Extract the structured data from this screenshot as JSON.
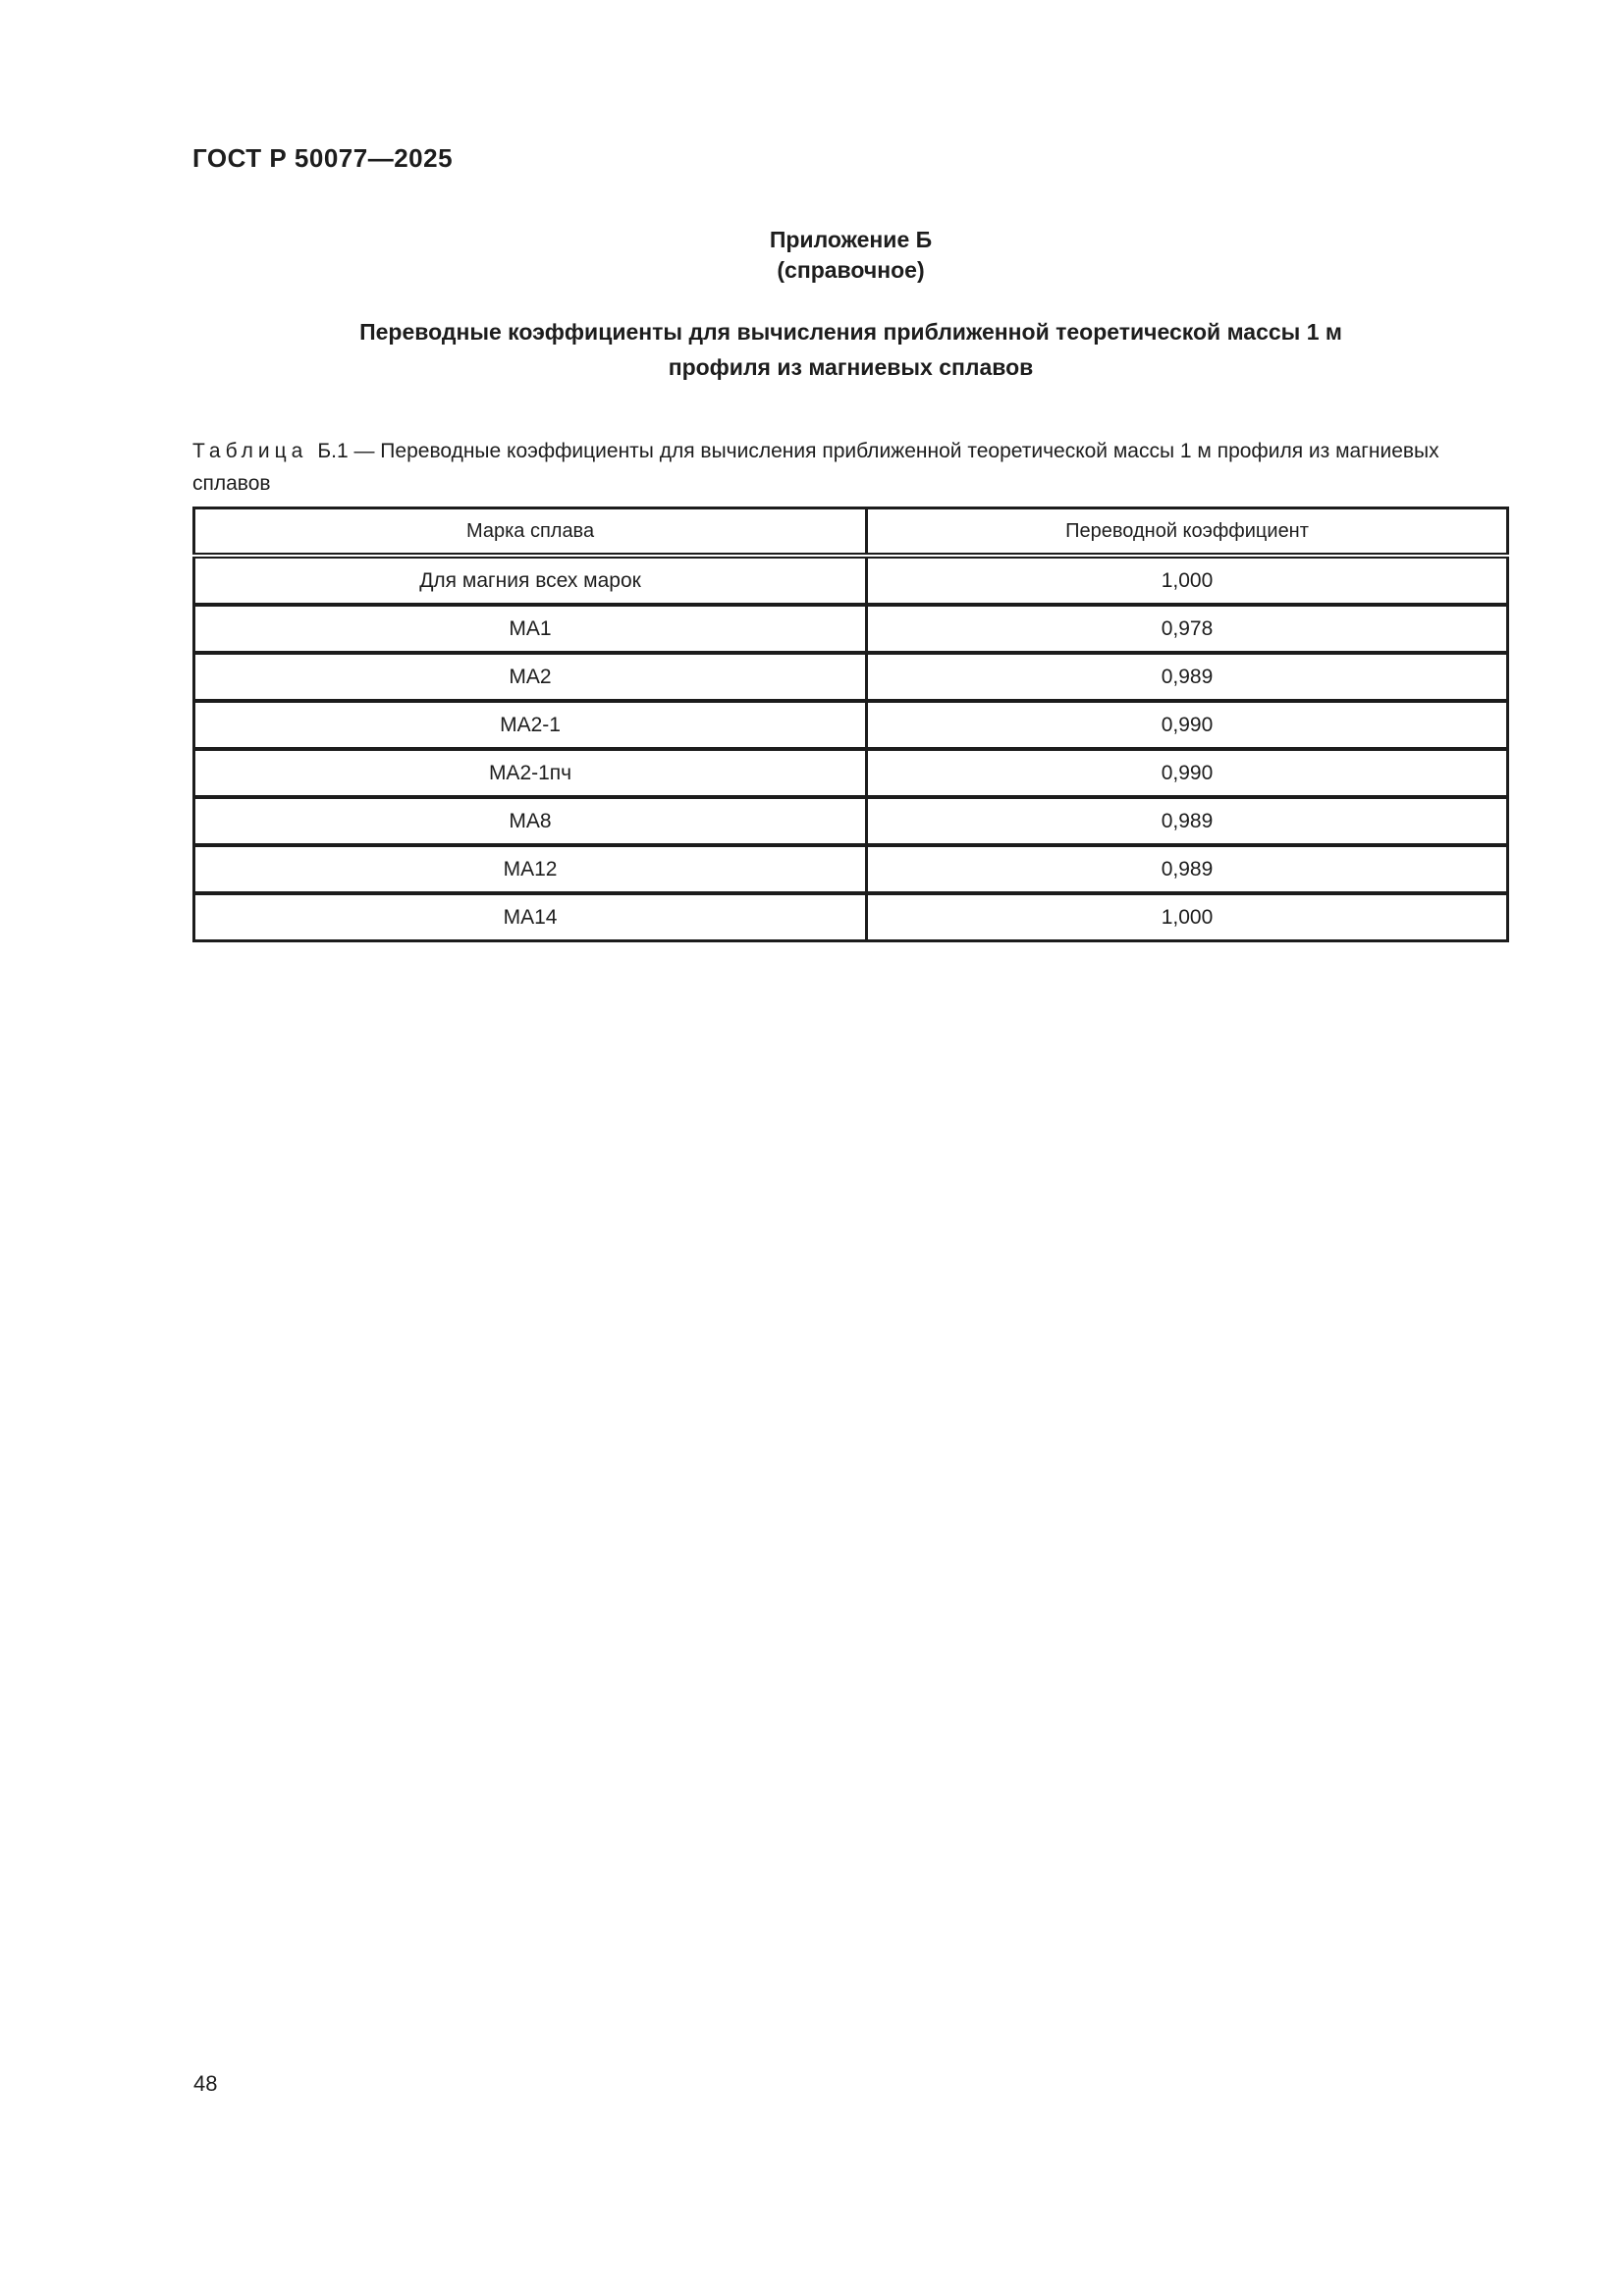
{
  "document": {
    "code": "ГОСТ Р 50077—2025",
    "page_number": "48"
  },
  "appendix": {
    "label": "Приложение Б",
    "kind": "(справочное)",
    "title_lines": [
      "Переводные коэффициенты для вычисления приближенной теоретической массы 1 м",
      "профиля из магниевых сплавов"
    ]
  },
  "table": {
    "caption_word": "Таблица",
    "caption_rest": "Б.1 — Переводные коэффициенты для вычисления приближенной теоретической массы 1 м профиля из магниевых сплавов",
    "columns": [
      "Марка сплава",
      "Переводной коэффициент"
    ],
    "rows": [
      {
        "grade": "Для магния всех марок",
        "coef": "1,000"
      },
      {
        "grade": "МА1",
        "coef": "0,978"
      },
      {
        "grade": "МА2",
        "coef": "0,989"
      },
      {
        "grade": "МА2-1",
        "coef": "0,990"
      },
      {
        "grade": "МА2-1пч",
        "coef": "0,990"
      },
      {
        "grade": "МА8",
        "coef": "0,989"
      },
      {
        "grade": "МА12",
        "coef": "0,989"
      },
      {
        "grade": "МА14",
        "coef": "1,000"
      }
    ]
  },
  "colors": {
    "text": "#1d1d1d",
    "border": "#1c1c1c",
    "background": "#ffffff"
  }
}
